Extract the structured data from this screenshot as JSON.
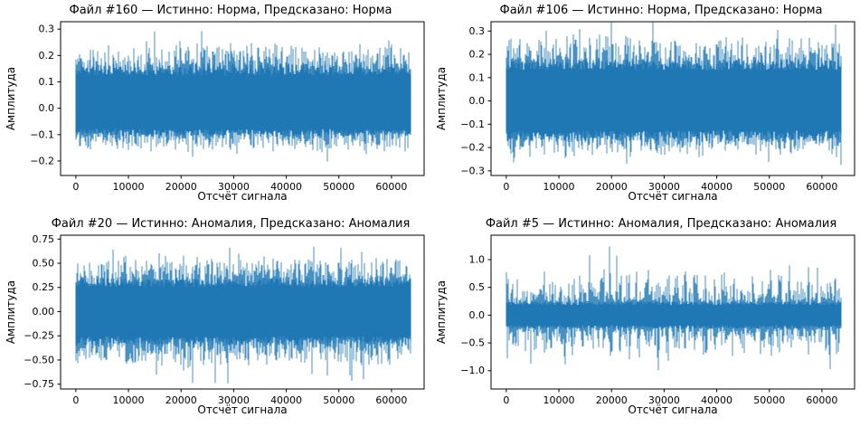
{
  "figure": {
    "background": "#ffffff",
    "frame_color": "#000000",
    "tick_color": "#000000",
    "text_color": "#000000"
  },
  "chart_data": [
    {
      "type": "line",
      "title": "Файл #160 — Истинно: Норма, Предсказано: Норма",
      "xlabel": "Отсчёт сигнала",
      "ylabel": "Амплитуда",
      "line_color": "#1f77b4",
      "n_samples": 63700,
      "xlim": [
        -2900,
        66200
      ],
      "ylim": [
        -0.255,
        0.328
      ],
      "xticks": {
        "values": [
          0,
          10000,
          20000,
          30000,
          40000,
          50000,
          60000
        ],
        "labels": [
          "0",
          "10000",
          "20000",
          "30000",
          "40000",
          "50000",
          "60000"
        ]
      },
      "yticks": {
        "values": [
          0.3,
          0.2,
          0.1,
          0.0,
          -0.1,
          -0.2
        ],
        "labels": [
          "0.3",
          "0.2",
          "0.1",
          "0.0",
          "−0.1",
          "−0.2"
        ]
      },
      "signal": {
        "pattern": "uniform-noise",
        "core_top": 0.15,
        "core_bottom": -0.095,
        "typical_peak_top": 0.24,
        "typical_peak_bottom": -0.16,
        "max": 0.3,
        "min": -0.21,
        "tail_exponent": 1.7,
        "rare_prob": 0.012,
        "burst_period_samples": 0,
        "seed": 11
      }
    },
    {
      "type": "line",
      "title": "Файл #106 — Истинно: Норма, Предсказано: Норма",
      "xlabel": "Отсчёт сигнала",
      "ylabel": "Амплитуда",
      "line_color": "#1f77b4",
      "n_samples": 63700,
      "xlim": [
        -2900,
        66200
      ],
      "ylim": [
        -0.32,
        0.34
      ],
      "xticks": {
        "values": [
          0,
          10000,
          20000,
          30000,
          40000,
          50000,
          60000
        ],
        "labels": [
          "0",
          "10000",
          "20000",
          "30000",
          "40000",
          "50000",
          "60000"
        ]
      },
      "yticks": {
        "values": [
          0.3,
          0.2,
          0.1,
          0.0,
          -0.1,
          -0.2,
          -0.3
        ],
        "labels": [
          "0.3",
          "0.2",
          "0.1",
          "0.0",
          "−0.1",
          "−0.2",
          "−0.3"
        ]
      },
      "signal": {
        "pattern": "uniform-noise",
        "core_top": 0.16,
        "core_bottom": -0.155,
        "typical_peak_top": 0.27,
        "typical_peak_bottom": -0.23,
        "max": 0.345,
        "min": -0.285,
        "tail_exponent": 1.7,
        "rare_prob": 0.012,
        "burst_period_samples": 0,
        "seed": 23
      }
    },
    {
      "type": "line",
      "title": "Файл #20 — Истинно: Аномалия, Предсказано: Аномалия",
      "xlabel": "Отсчёт сигнала",
      "ylabel": "Амплитуда",
      "line_color": "#1f77b4",
      "n_samples": 63700,
      "xlim": [
        -2900,
        66200
      ],
      "ylim": [
        -0.8,
        0.79
      ],
      "xticks": {
        "values": [
          0,
          10000,
          20000,
          30000,
          40000,
          50000,
          60000
        ],
        "labels": [
          "0",
          "10000",
          "20000",
          "30000",
          "40000",
          "50000",
          "60000"
        ]
      },
      "yticks": {
        "values": [
          0.75,
          0.5,
          0.25,
          0.0,
          -0.25,
          -0.5,
          -0.75
        ],
        "labels": [
          "0.75",
          "0.50",
          "0.25",
          "0.00",
          "−0.25",
          "−0.50",
          "−0.75"
        ]
      },
      "signal": {
        "pattern": "uniform-noise",
        "core_top": 0.31,
        "core_bottom": -0.31,
        "typical_peak_top": 0.56,
        "typical_peak_bottom": -0.56,
        "max": 0.72,
        "min": -0.74,
        "tail_exponent": 1.5,
        "rare_prob": 0.015,
        "burst_period_samples": 0,
        "seed": 37
      }
    },
    {
      "type": "line",
      "title": "Файл #5 — Истинно: Аномалия, Предсказано: Аномалия",
      "xlabel": "Отсчёт сигнала",
      "ylabel": "Амплитуда",
      "line_color": "#1f77b4",
      "n_samples": 63700,
      "xlim": [
        -2900,
        66200
      ],
      "ylim": [
        -1.33,
        1.44
      ],
      "xticks": {
        "values": [
          0,
          10000,
          20000,
          30000,
          40000,
          50000,
          60000
        ],
        "labels": [
          "0",
          "10000",
          "20000",
          "30000",
          "40000",
          "50000",
          "60000"
        ]
      },
      "yticks": {
        "values": [
          1.0,
          0.5,
          0.0,
          -0.5,
          -1.0
        ],
        "labels": [
          "1.0",
          "0.5",
          "0.0",
          "−0.5",
          "−1.0"
        ]
      },
      "signal": {
        "pattern": "burst-noise",
        "core_top": 0.22,
        "core_bottom": -0.22,
        "typical_peak_top": 0.88,
        "typical_peak_bottom": -0.82,
        "max": 1.35,
        "min": -1.21,
        "tail_exponent": 1.4,
        "rare_prob": 0.01,
        "burst_period_samples": 1800,
        "seed": 53
      }
    }
  ]
}
